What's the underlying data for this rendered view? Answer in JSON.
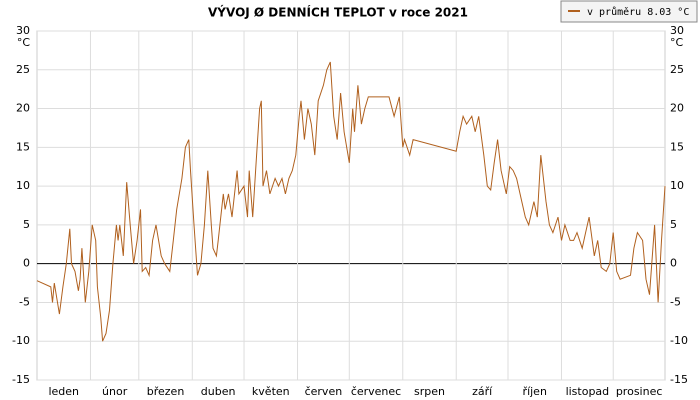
{
  "chart_data": {
    "type": "line",
    "title": "VÝVOJ Ø DENNÍCH TEPLOT v roce 2021",
    "ylabel": "°C",
    "x": [
      1,
      9,
      10,
      11,
      14,
      16,
      18,
      20,
      21,
      23,
      25,
      26,
      27,
      29,
      31,
      33,
      35,
      36,
      38,
      39,
      41,
      43,
      45,
      47,
      48,
      49,
      51,
      53,
      55,
      57,
      59,
      61,
      62,
      64,
      66,
      68,
      70,
      73,
      75,
      78,
      80,
      82,
      85,
      87,
      89,
      90,
      92,
      94,
      96,
      98,
      100,
      102,
      103,
      105,
      106,
      109,
      110,
      112,
      114,
      117,
      118,
      121,
      123,
      124,
      126,
      128,
      130,
      131,
      132,
      134,
      136,
      139,
      141,
      143,
      145,
      147,
      149,
      151,
      153,
      154,
      156,
      158,
      160,
      162,
      164,
      167,
      169,
      171,
      173,
      175,
      177,
      179,
      182,
      184,
      185,
      187,
      189,
      191,
      193,
      196,
      200,
      205,
      208,
      211,
      213,
      214,
      217,
      219,
      244,
      246,
      248,
      250,
      253,
      255,
      257,
      260,
      262,
      264,
      266,
      268,
      270,
      273,
      275,
      277,
      279,
      282,
      284,
      286,
      289,
      291,
      293,
      296,
      298,
      300,
      303,
      305,
      307,
      310,
      312,
      314,
      317,
      319,
      321,
      324,
      326,
      328,
      331,
      333,
      335,
      337,
      339,
      345,
      347,
      349,
      352,
      354,
      356,
      359,
      361,
      363,
      365
    ],
    "series": [
      {
        "name": "v průměru 8.03 °C",
        "color": "#b0601e",
        "values": [
          -2.2,
          -3,
          -5,
          -2.5,
          -6.5,
          -3,
          0,
          4.5,
          0,
          -1,
          -3.5,
          -2,
          2,
          -5,
          -1,
          5,
          3,
          -3,
          -7,
          -10,
          -9,
          -6,
          0,
          5,
          3,
          5,
          1,
          10.5,
          5,
          0,
          3,
          7,
          -1,
          -0.5,
          -1.5,
          3,
          5,
          1,
          0,
          -1,
          3,
          7,
          11,
          15,
          16,
          12,
          5,
          -1.5,
          0,
          5,
          12,
          5,
          2,
          1,
          3,
          9,
          7,
          9,
          6,
          12,
          9,
          10,
          6,
          12,
          6,
          13,
          20,
          21,
          10,
          12,
          9,
          11,
          10,
          11,
          9,
          11,
          12,
          14,
          19,
          21,
          16,
          20,
          18,
          14,
          21,
          23,
          25,
          26,
          19,
          16,
          22,
          17,
          13,
          20,
          17,
          23,
          18,
          20,
          21.5,
          21.5,
          21.5,
          21.5,
          19,
          21.5,
          15,
          16,
          14,
          16,
          14.5,
          17,
          19,
          18,
          19,
          17,
          19,
          14,
          10,
          9.5,
          13,
          16,
          12,
          9,
          12.5,
          12,
          11,
          8,
          6,
          5,
          8,
          6,
          14,
          8,
          5,
          4,
          6,
          3,
          5,
          3,
          3,
          4,
          2,
          4,
          6,
          1,
          3,
          -0.5,
          -1,
          0,
          4,
          -1,
          -2,
          -1.5,
          2,
          4,
          3,
          -2,
          -4,
          5,
          -5,
          3,
          10
        ]
      }
    ],
    "xlim": [
      1,
      365
    ],
    "xticks": [
      {
        "value": 1,
        "label": "leden"
      },
      {
        "value": 32,
        "label": "únor"
      },
      {
        "value": 60,
        "label": "březen"
      },
      {
        "value": 91,
        "label": "duben"
      },
      {
        "value": 121,
        "label": "květen"
      },
      {
        "value": 152,
        "label": "červen"
      },
      {
        "value": 182,
        "label": "červenec"
      },
      {
        "value": 213,
        "label": "srpen"
      },
      {
        "value": 244,
        "label": "září"
      },
      {
        "value": 274,
        "label": "říjen"
      },
      {
        "value": 305,
        "label": "listopad"
      },
      {
        "value": 335,
        "label": "prosinec"
      }
    ],
    "ylim": [
      -15,
      30
    ],
    "yticks": [
      -15,
      -10,
      -5,
      0,
      5,
      10,
      15,
      20,
      25,
      30
    ],
    "grid": true,
    "legend": "top-right"
  }
}
